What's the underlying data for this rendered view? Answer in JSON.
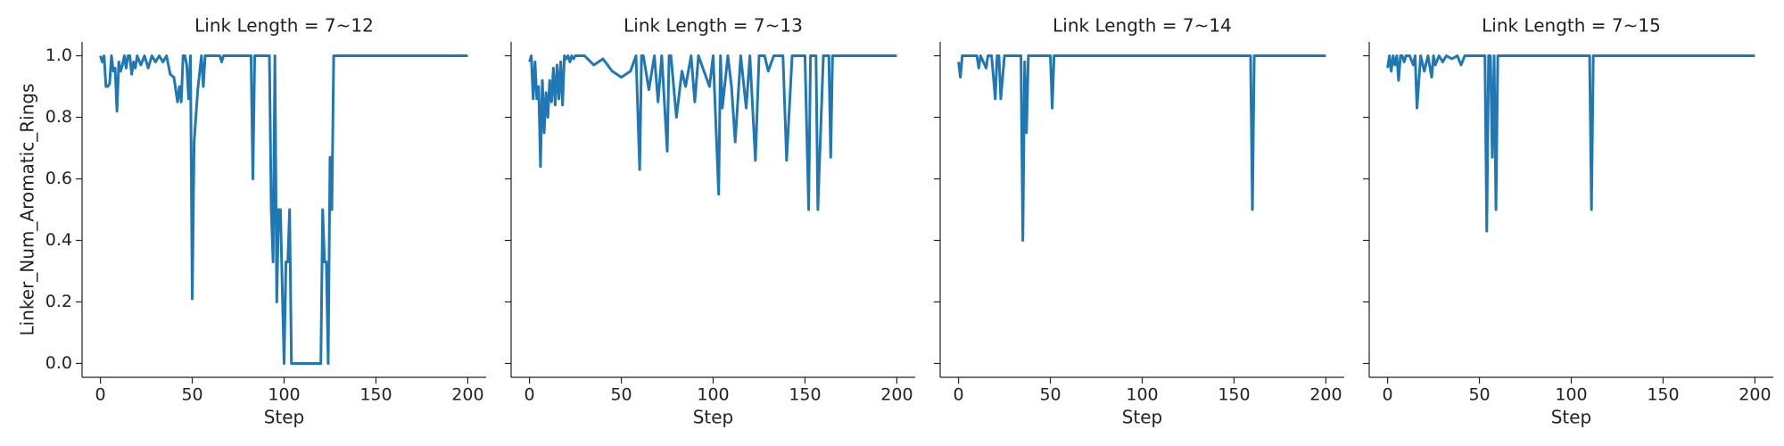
{
  "chart_data": [
    {
      "type": "line",
      "title": "Link Length = 7~12",
      "xlabel": "Step",
      "ylabel": "Linker_Num_Aromatic_Rings",
      "color": "#1f77b4",
      "x": [
        0,
        1,
        2,
        3,
        4,
        5,
        6,
        7,
        8,
        9,
        10,
        11,
        12,
        13,
        14,
        15,
        16,
        17,
        18,
        19,
        20,
        22,
        24,
        26,
        28,
        30,
        32,
        34,
        36,
        38,
        40,
        42,
        43,
        44,
        45,
        46,
        47,
        48,
        49,
        50,
        51,
        53,
        55,
        56,
        57,
        60,
        65,
        66,
        67,
        70,
        75,
        80,
        82,
        83,
        84,
        85,
        90,
        92,
        93,
        94,
        95,
        96,
        97,
        98,
        99,
        100,
        101,
        102,
        103,
        104,
        105,
        110,
        115,
        120,
        121,
        122,
        123,
        124,
        125,
        126,
        127,
        130,
        150,
        200
      ],
      "values": [
        1,
        0.98,
        1,
        0.9,
        0.9,
        0.91,
        1,
        0.95,
        0.96,
        0.82,
        0.98,
        0.95,
        0.97,
        1,
        0.96,
        1,
        1,
        0.94,
        0.98,
        0.96,
        1,
        0.97,
        1,
        0.96,
        1,
        0.98,
        1,
        0.98,
        1,
        0.94,
        0.93,
        0.85,
        0.9,
        0.85,
        1,
        1,
        0.97,
        0.86,
        1,
        0.21,
        0.72,
        0.89,
        1,
        0.9,
        1,
        1,
        1,
        0.98,
        1,
        1,
        1,
        1,
        1,
        0.6,
        1,
        1,
        1,
        1,
        0.5,
        0.33,
        1,
        0.2,
        0.5,
        0.5,
        0.25,
        0,
        0.33,
        0.33,
        0.5,
        0,
        0,
        0,
        0,
        0,
        0.5,
        0.33,
        0.33,
        0,
        0.67,
        0.5,
        1,
        1,
        1,
        1
      ],
      "xlim": [
        -10,
        210
      ],
      "ylim": [
        -0.045,
        1.045
      ],
      "xticks": [
        0,
        50,
        100,
        150,
        200
      ],
      "yticks": [
        {
          "value": 0,
          "label": "0.0"
        },
        0.2,
        0.4,
        0.6,
        0.8,
        {
          "value": 1,
          "label": "1.0"
        }
      ]
    },
    {
      "type": "line",
      "title": "Link Length = 7~13",
      "xlabel": "Step",
      "color": "#1f77b4",
      "sharey": true,
      "x": [
        0,
        1,
        2,
        3,
        4,
        5,
        6,
        7,
        8,
        9,
        10,
        11,
        12,
        13,
        14,
        15,
        16,
        17,
        18,
        19,
        20,
        21,
        22,
        23,
        24,
        25,
        30,
        35,
        40,
        45,
        50,
        55,
        58,
        60,
        61,
        62,
        65,
        68,
        70,
        72,
        75,
        76,
        77,
        80,
        83,
        85,
        88,
        90,
        92,
        95,
        98,
        100,
        103,
        104,
        105,
        108,
        110,
        112,
        115,
        118,
        120,
        123,
        125,
        128,
        130,
        133,
        135,
        138,
        140,
        143,
        145,
        150,
        152,
        153,
        155,
        156,
        157,
        160,
        163,
        164,
        165,
        170,
        200
      ],
      "values": [
        0.98,
        1,
        0.86,
        0.98,
        0.86,
        0.9,
        0.64,
        0.92,
        0.75,
        0.88,
        0.8,
        0.92,
        0.85,
        0.96,
        0.84,
        0.97,
        0.86,
        0.98,
        0.84,
        1,
        0.99,
        1,
        0.98,
        1,
        0.99,
        1,
        1,
        0.97,
        0.99,
        0.95,
        0.93,
        0.95,
        1,
        0.63,
        1,
        1,
        0.89,
        1,
        0.85,
        1,
        0.69,
        1,
        1,
        0.8,
        0.95,
        0.9,
        1,
        0.85,
        1,
        0.95,
        0.9,
        1,
        0.55,
        1,
        0.83,
        1,
        0.9,
        0.72,
        1,
        0.83,
        1,
        0.66,
        1,
        1,
        0.95,
        1,
        1,
        1,
        0.66,
        1,
        1,
        1,
        0.5,
        1,
        1,
        1,
        0.5,
        1,
        1,
        0.67,
        1,
        1,
        1
      ],
      "xlim": [
        -10,
        210
      ],
      "ylim": [
        -0.045,
        1.045
      ],
      "xticks": [
        0,
        50,
        100,
        150,
        200
      ],
      "yticks": [
        0,
        0.2,
        0.4,
        0.6,
        0.8,
        1
      ]
    },
    {
      "type": "line",
      "title": "Link Length = 7~14",
      "xlabel": "Step",
      "color": "#1f77b4",
      "sharey": true,
      "x": [
        0,
        1,
        2,
        3,
        5,
        10,
        11,
        12,
        15,
        16,
        18,
        20,
        21,
        22,
        23,
        25,
        26,
        28,
        30,
        34,
        35,
        36,
        37,
        38,
        40,
        50,
        51,
        52,
        55,
        100,
        159,
        160,
        161,
        162,
        200
      ],
      "values": [
        0.98,
        0.93,
        1,
        1,
        1,
        1,
        0.96,
        1,
        0.96,
        1,
        1,
        0.86,
        1,
        1,
        0.86,
        1,
        1,
        1,
        1,
        1,
        0.4,
        0.98,
        0.75,
        1,
        1,
        1,
        0.83,
        1,
        1,
        1,
        1,
        0.5,
        1,
        1,
        1
      ],
      "xlim": [
        -10,
        210
      ],
      "ylim": [
        -0.045,
        1.045
      ],
      "xticks": [
        0,
        50,
        100,
        150,
        200
      ],
      "yticks": [
        0,
        0.2,
        0.4,
        0.6,
        0.8,
        1
      ]
    },
    {
      "type": "line",
      "title": "Link Length = 7~15",
      "xlabel": "Step",
      "color": "#1f77b4",
      "sharey": true,
      "x": [
        0,
        1,
        2,
        3,
        4,
        5,
        6,
        7,
        8,
        9,
        10,
        12,
        14,
        15,
        16,
        18,
        20,
        22,
        24,
        25,
        26,
        28,
        30,
        32,
        35,
        38,
        40,
        42,
        45,
        48,
        50,
        53,
        54,
        55,
        56,
        57,
        58,
        59,
        60,
        61,
        100,
        110,
        111,
        112,
        200
      ],
      "values": [
        0.96,
        1,
        0.95,
        1,
        0.97,
        1,
        0.92,
        1,
        1,
        0.98,
        1,
        1,
        0.97,
        1,
        0.83,
        1,
        0.95,
        1,
        0.93,
        1,
        0.97,
        1,
        0.98,
        1,
        0.99,
        1,
        0.97,
        1,
        1,
        1,
        1,
        1,
        0.43,
        1,
        1,
        0.67,
        1,
        0.5,
        1,
        1,
        1,
        1,
        0.5,
        1,
        1
      ],
      "xlim": [
        -10,
        210
      ],
      "ylim": [
        -0.045,
        1.045
      ],
      "xticks": [
        0,
        50,
        100,
        150,
        200
      ],
      "yticks": [
        0,
        0.2,
        0.4,
        0.6,
        0.8,
        1
      ]
    }
  ]
}
